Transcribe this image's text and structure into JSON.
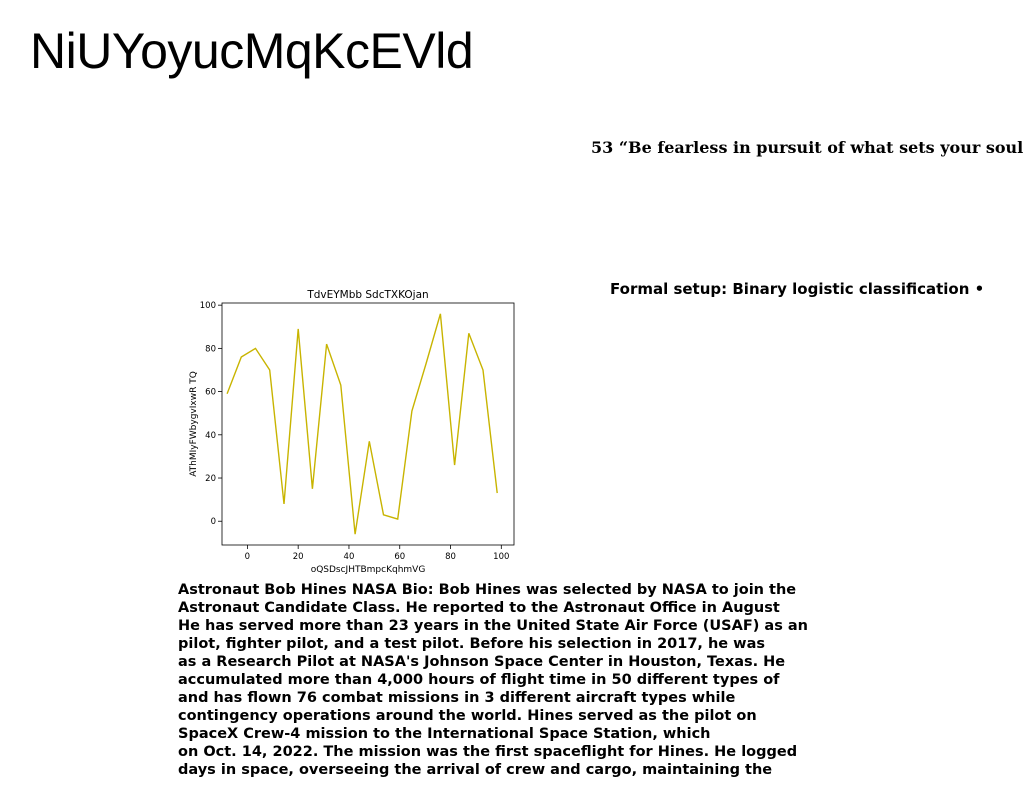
{
  "page": {
    "title": "NiUYoyucMqKcEVld",
    "quote": "53 “Be fearless in pursuit of what sets your soul",
    "setup": "Formal setup: Binary logistic classification •"
  },
  "bio": {
    "lines": [
      "Astronaut Bob Hines NASA Bio: Bob Hines was selected by NASA to join the",
      "Astronaut Candidate Class. He reported to the Astronaut Office in August",
      "He has served more than 23 years in the United State Air Force (USAF) as an",
      "pilot, fighter pilot, and a test pilot. Before his selection in 2017, he was",
      "as a Research Pilot at NASA's Johnson Space Center in Houston, Texas. He",
      "accumulated more than 4,000 hours of flight time in 50 different types of",
      "and has flown 76 combat missions in 3 different aircraft types while",
      "contingency operations around the world. Hines served as the pilot on",
      "SpaceX Crew-4 mission to the International Space Station, which",
      "on Oct. 14, 2022. The mission was the first spaceflight for Hines. He logged",
      "days in space, overseeing the arrival of crew and cargo, maintaining the"
    ]
  },
  "chart_data": {
    "type": "line",
    "title": "TdvEYMbb SdcTXKOjan",
    "xlabel": "oQSDscJHTBmpcKqhmVG",
    "ylabel": "AThMIyFWbygvIxwR TQ",
    "xlim": [
      -10,
      105
    ],
    "ylim": [
      -11,
      101
    ],
    "xticks": [
      0,
      20,
      40,
      60,
      80,
      100
    ],
    "yticks": [
      0,
      20,
      40,
      60,
      80,
      100
    ],
    "grid": false,
    "color": "#c8b400",
    "series": [
      {
        "x": [
          -8,
          -2.4,
          3.2,
          8.8,
          14.4,
          20,
          25.6,
          31.2,
          36.8,
          42.4,
          48,
          53.6,
          59.2,
          64.8,
          70.4,
          76,
          81.6,
          87.2,
          92.8,
          98.4
        ],
        "values": [
          59,
          76,
          80,
          70,
          8,
          89,
          15,
          82,
          63,
          -6,
          37,
          3,
          1,
          51,
          73,
          96,
          26,
          87,
          70,
          13
        ]
      }
    ]
  }
}
